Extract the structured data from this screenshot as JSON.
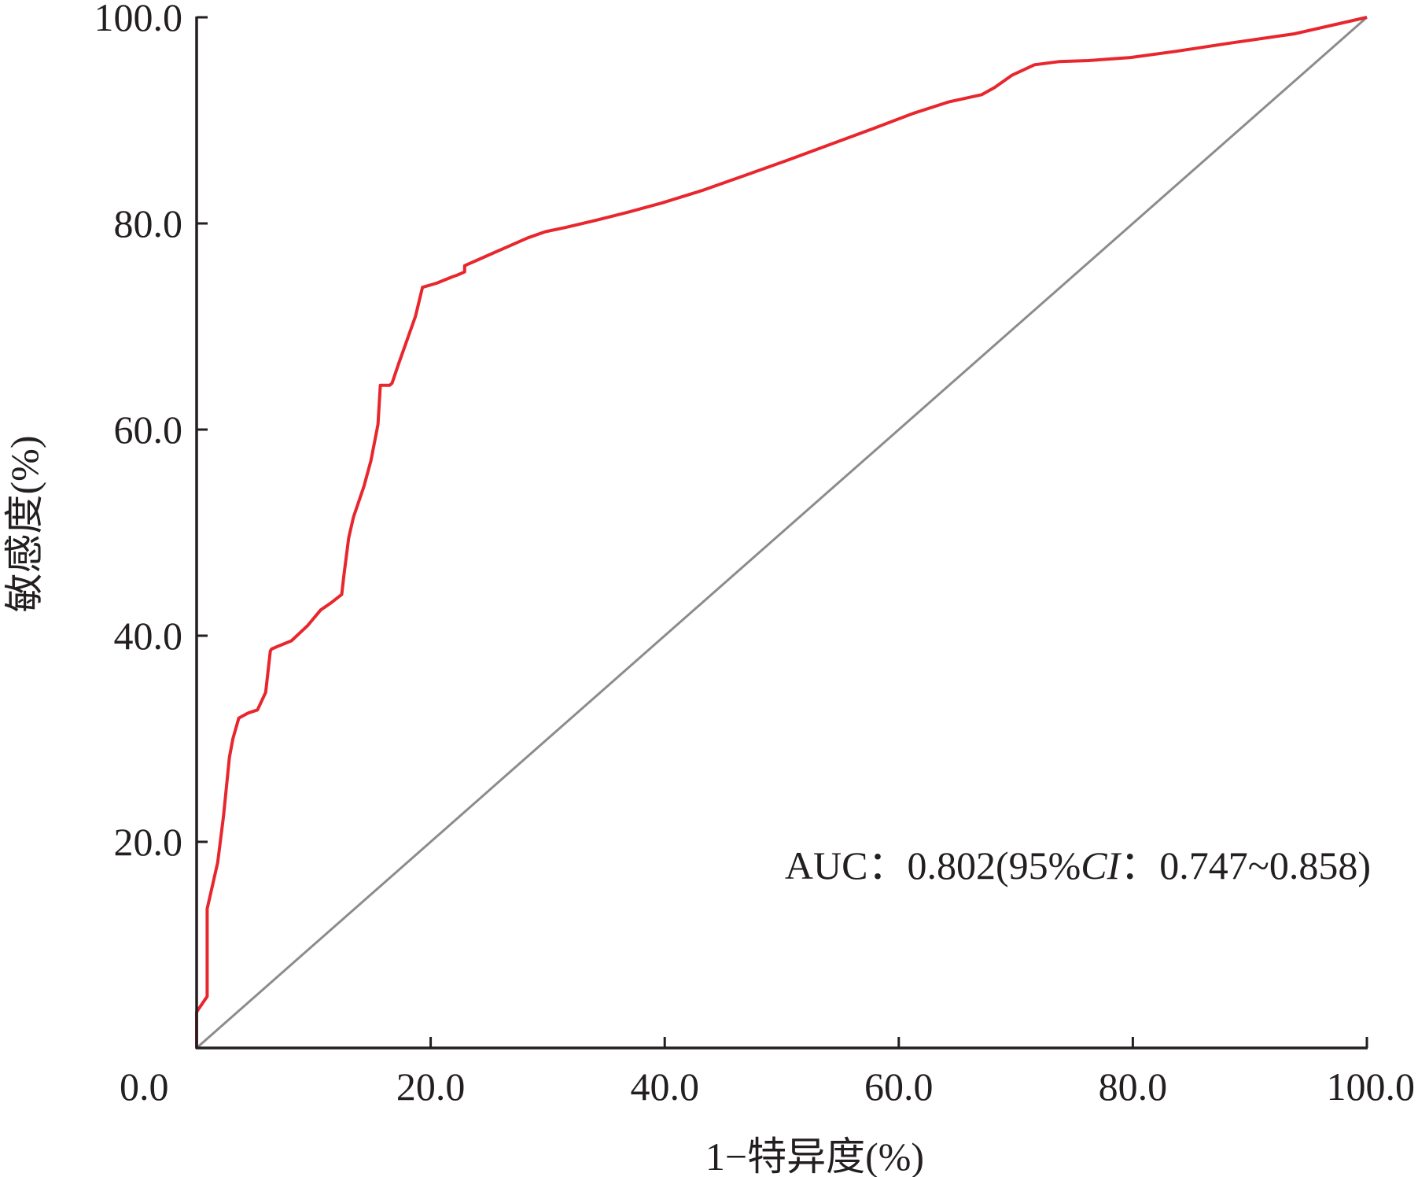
{
  "chart_data": {
    "type": "line",
    "xlabel": "1−特异度(%)",
    "ylabel": "敏感度(%)",
    "xlim": [
      0,
      100
    ],
    "ylim": [
      0,
      100
    ],
    "x_ticks": [
      "0.0",
      "20.0",
      "40.0",
      "60.0",
      "80.0",
      "100.0"
    ],
    "y_ticks": [
      "20.0",
      "40.0",
      "60.0",
      "80.0",
      "100.0"
    ],
    "grid": false,
    "annotation": {
      "prefix": "AUC：0.802(95%",
      "italic": "CI",
      "suffix": "：0.747~0.858)"
    },
    "colors": {
      "roc": "#e8262d",
      "reference": "#8c8c8c",
      "axis": "#231f20"
    },
    "series": [
      {
        "x": [
          0,
          0,
          0.9,
          0.9,
          1.8,
          2.3,
          2.8,
          3.1,
          3.6,
          4.4,
          5.2,
          5.9,
          6.3,
          6.4,
          7.0,
          8.1,
          9.5,
          10.6,
          11.5,
          12.4,
          12.6,
          13.0,
          13.4,
          14.3,
          14.9,
          15.5,
          15.7,
          16.5,
          16.7,
          17.3,
          18.7,
          19.3,
          20.5,
          21.8,
          22.3,
          22.9,
          22.9,
          24.3,
          26.3,
          28.3,
          29.8,
          31.5,
          34.1,
          36.9,
          39.8,
          43.2,
          46.7,
          50.4,
          54.0,
          57.8,
          61.3,
          64.3,
          67.1,
          68.2,
          69.7,
          71.6,
          73.7,
          76.2,
          79.8,
          83.7,
          88.3,
          93.8,
          100
        ],
        "y": [
          0,
          3.5,
          5.0,
          13.5,
          18.0,
          22.5,
          28.2,
          30.0,
          32.0,
          32.5,
          32.8,
          34.5,
          38.5,
          38.7,
          39.0,
          39.5,
          41.0,
          42.5,
          43.2,
          44.0,
          46.0,
          49.5,
          51.5,
          54.5,
          57.0,
          60.5,
          64.3,
          64.3,
          64.5,
          66.5,
          71.0,
          73.8,
          74.2,
          74.8,
          75.0,
          75.3,
          75.9,
          76.6,
          77.6,
          78.6,
          79.2,
          79.6,
          80.3,
          81.1,
          82.0,
          83.2,
          84.6,
          86.1,
          87.6,
          89.2,
          90.7,
          91.8,
          92.5,
          93.2,
          94.4,
          95.4,
          95.7,
          95.8,
          96.1,
          96.7,
          97.5,
          98.4,
          100
        ]
      }
    ]
  }
}
